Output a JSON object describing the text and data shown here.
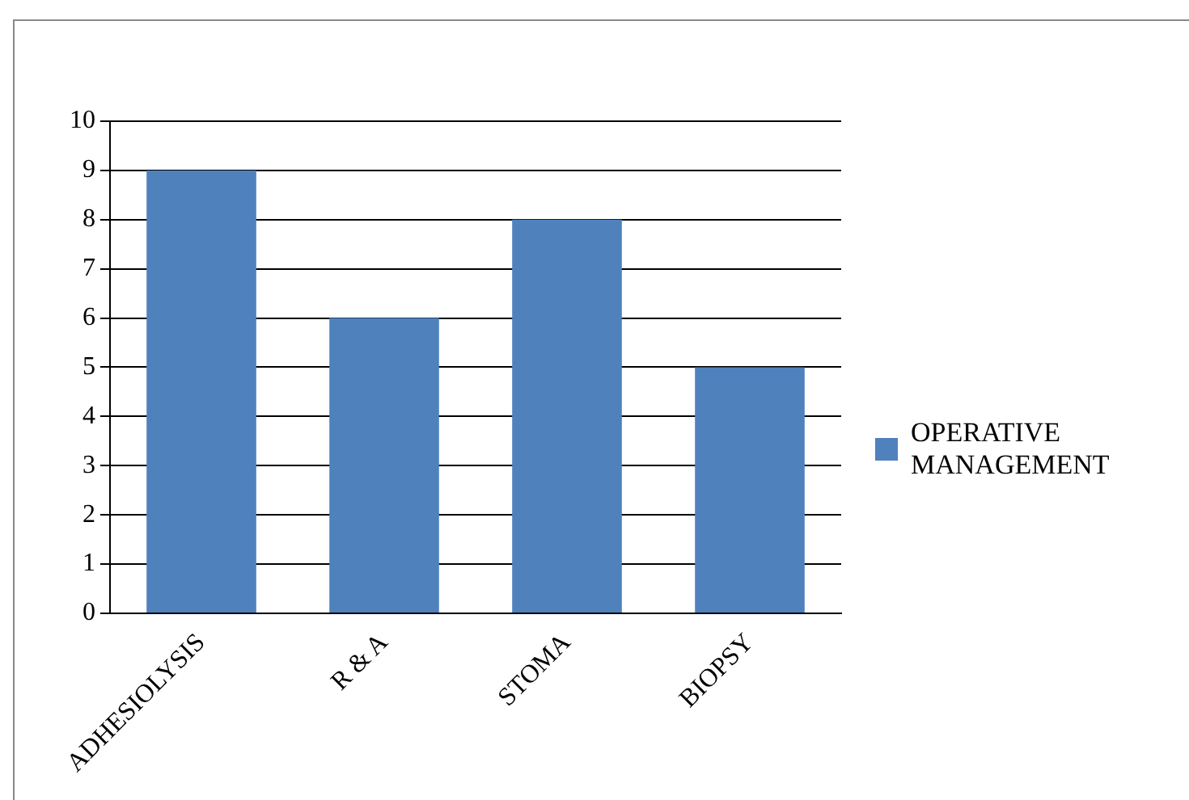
{
  "chart_data": {
    "type": "bar",
    "categories": [
      "ADHESIOLYSIS",
      "R & A",
      "STOMA",
      "BIOPSY"
    ],
    "series": [
      {
        "name": "OPERATIVE MANAGEMENT",
        "color": "#4f81bd",
        "values": [
          9,
          6,
          8,
          5
        ]
      }
    ],
    "ylim": [
      0,
      10
    ],
    "yticks": [
      0,
      1,
      2,
      3,
      4,
      5,
      6,
      7,
      8,
      9,
      10
    ],
    "grid": "y",
    "legend": "right"
  }
}
